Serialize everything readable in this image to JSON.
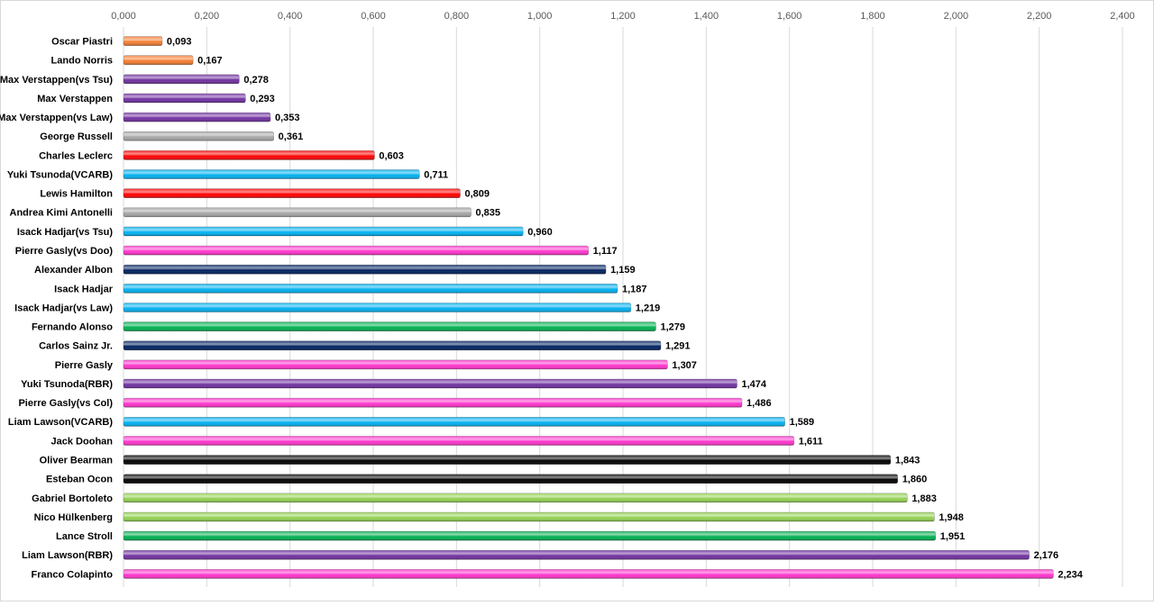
{
  "chart_data": {
    "type": "bar",
    "orientation": "horizontal",
    "categories": [
      "Oscar Piastri",
      "Lando Norris",
      "Max Verstappen(vs Tsu)",
      "Max Verstappen",
      "Max Verstappen(vs Law)",
      "George Russell",
      "Charles Leclerc",
      "Yuki Tsunoda(VCARB)",
      "Lewis Hamilton",
      "Andrea Kimi Antonelli",
      "Isack Hadjar(vs Tsu)",
      "Pierre Gasly(vs Doo)",
      "Alexander Albon",
      "Isack Hadjar",
      "Isack Hadjar(vs Law)",
      "Fernando Alonso",
      "Carlos Sainz Jr.",
      "Pierre Gasly",
      "Yuki Tsunoda(RBR)",
      "Pierre Gasly(vs Col)",
      "Liam Lawson(VCARB)",
      "Jack Doohan",
      "Oliver Bearman",
      "Esteban Ocon",
      "Gabriel Bortoleto",
      "Nico Hülkenberg",
      "Lance Stroll",
      "Liam Lawson(RBR)",
      "Franco Colapinto"
    ],
    "values": [
      0.093,
      0.167,
      0.278,
      0.293,
      0.353,
      0.361,
      0.603,
      0.711,
      0.809,
      0.835,
      0.96,
      1.117,
      1.159,
      1.187,
      1.219,
      1.279,
      1.291,
      1.307,
      1.474,
      1.486,
      1.589,
      1.611,
      1.843,
      1.86,
      1.883,
      1.948,
      1.951,
      2.176,
      2.234
    ],
    "value_labels": [
      "0,093",
      "0,167",
      "0,278",
      "0,293",
      "0,353",
      "0,361",
      "0,603",
      "0,711",
      "0,809",
      "0,835",
      "0,960",
      "1,117",
      "1,159",
      "1,187",
      "1,219",
      "1,279",
      "1,291",
      "1,307",
      "1,474",
      "1,486",
      "1,589",
      "1,611",
      "1,843",
      "1,860",
      "1,883",
      "1,948",
      "1,951",
      "2,176",
      "2,234"
    ],
    "colors": [
      "#f47c30",
      "#f47c30",
      "#7030a0",
      "#7030a0",
      "#7030a0",
      "#a6a6a6",
      "#ff0000",
      "#00b0f0",
      "#ff0000",
      "#a6a6a6",
      "#00b0f0",
      "#ff33cc",
      "#002060",
      "#00b0f0",
      "#00b0f0",
      "#00b050",
      "#002060",
      "#ff33cc",
      "#7030a0",
      "#ff33cc",
      "#00b0f0",
      "#ff33cc",
      "#000000",
      "#000000",
      "#92d050",
      "#92d050",
      "#00b050",
      "#7030a0",
      "#ff33cc"
    ],
    "xlim": [
      0,
      2.4
    ],
    "xticks": [
      {
        "value": 0,
        "label": "0,000"
      },
      {
        "value": 0.2,
        "label": "0,200"
      },
      {
        "value": 0.4,
        "label": "0,400"
      },
      {
        "value": 0.6,
        "label": "0,600"
      },
      {
        "value": 0.8,
        "label": "0,800"
      },
      {
        "value": 1.0,
        "label": "1,000"
      },
      {
        "value": 1.2,
        "label": "1,200"
      },
      {
        "value": 1.4,
        "label": "1,400"
      },
      {
        "value": 1.6,
        "label": "1,600"
      },
      {
        "value": 1.8,
        "label": "1,800"
      },
      {
        "value": 2.0,
        "label": "2,000"
      },
      {
        "value": 2.2,
        "label": "2,200"
      },
      {
        "value": 2.4,
        "label": "2,400"
      }
    ],
    "grid": true
  }
}
